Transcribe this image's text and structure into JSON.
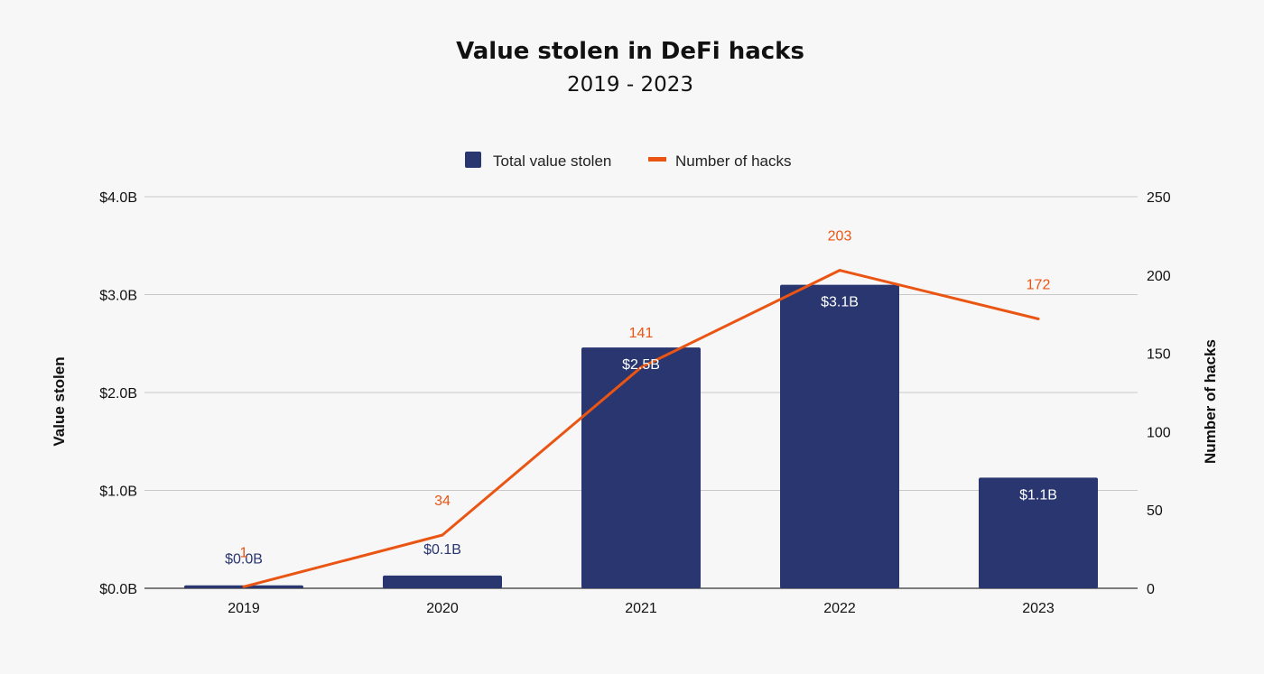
{
  "chart_data": {
    "type": "bar",
    "title": "Value stolen in DeFi hacks",
    "subtitle": "2019 - 2023",
    "categories": [
      "2019",
      "2020",
      "2021",
      "2022",
      "2023"
    ],
    "series": [
      {
        "name": "Total value stolen",
        "type": "bar",
        "axis": "left",
        "values": [
          0.03,
          0.13,
          2.46,
          3.1,
          1.13
        ],
        "data_labels": [
          "$0.0B",
          "$0.1B",
          "$2.5B",
          "$3.1B",
          "$1.1B"
        ]
      },
      {
        "name": "Number of hacks",
        "type": "line",
        "axis": "right",
        "values": [
          1,
          34,
          141,
          203,
          172
        ],
        "data_labels": [
          "1",
          "34",
          "141",
          "203",
          "172"
        ]
      }
    ],
    "ylabel": "Value stolen",
    "ylim": [
      0,
      4
    ],
    "yticks": [
      "$0.0B",
      "$1.0B",
      "$2.0B",
      "$3.0B",
      "$4.0B"
    ],
    "y2label": "Number of hacks",
    "y2lim": [
      0,
      250
    ],
    "y2ticks": [
      "0",
      "50",
      "100",
      "150",
      "200",
      "250"
    ],
    "grid": true,
    "legend_position": "top-center",
    "colors": {
      "bar": "#29366f",
      "line": "#ea5513",
      "bar_label_inside": "#ffffff",
      "bar_label_outside": "#29366f",
      "line_label": "#ea5513"
    }
  }
}
